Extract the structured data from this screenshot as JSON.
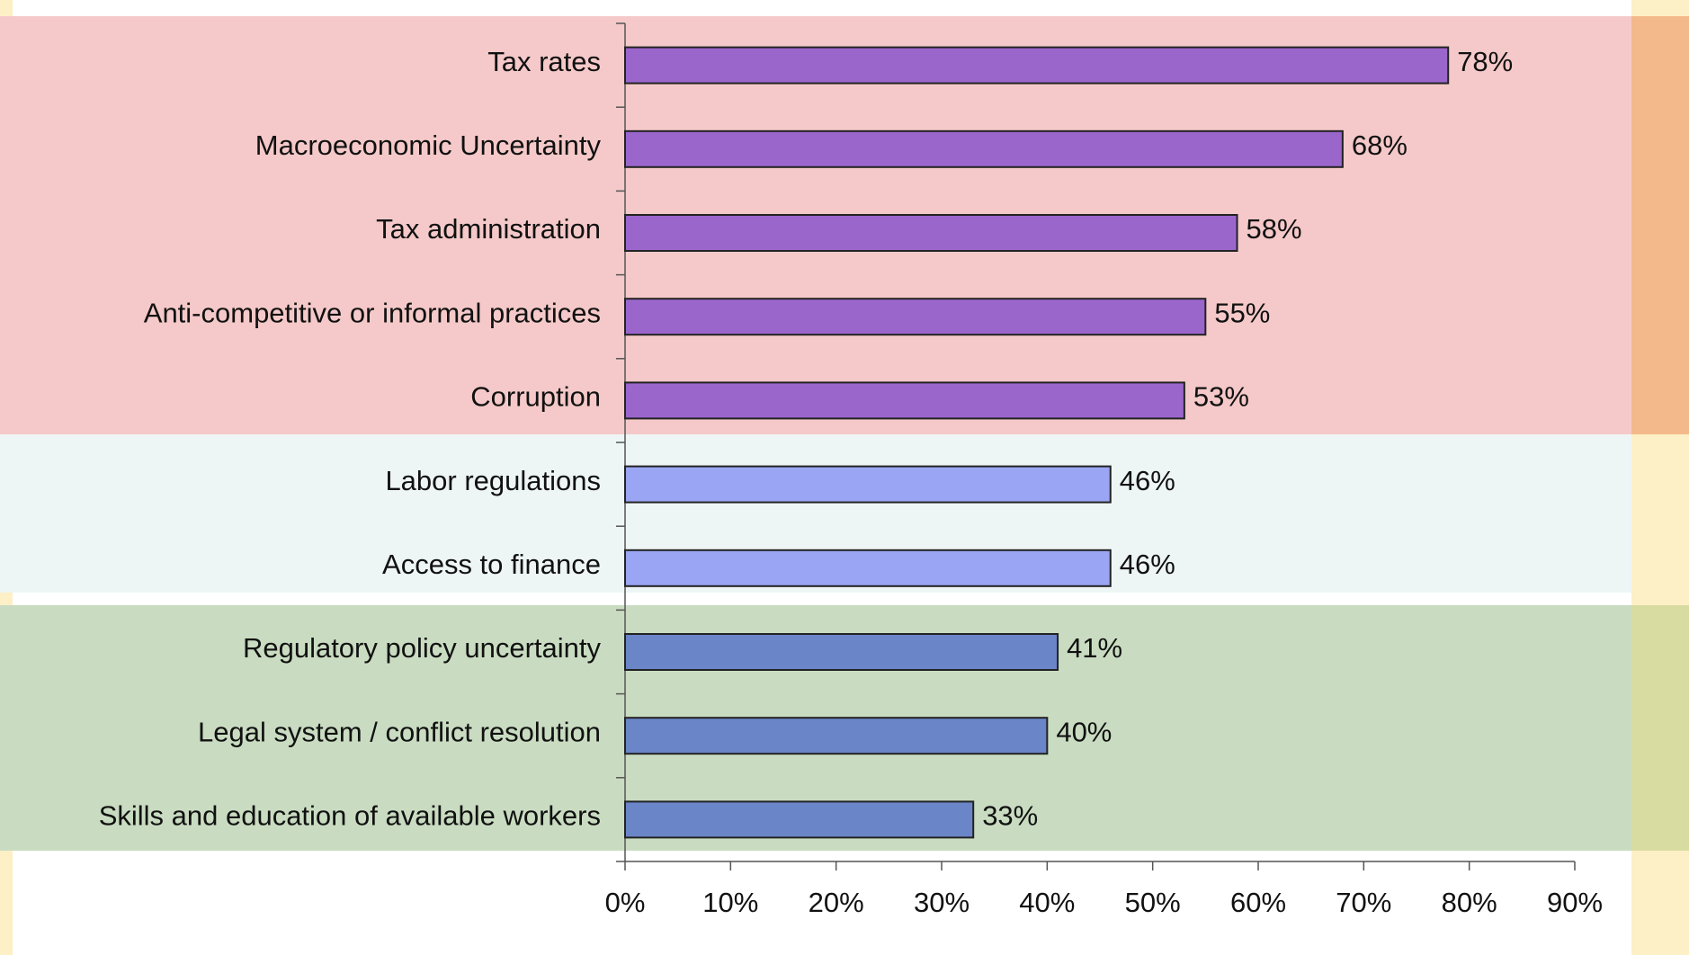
{
  "chart_data": {
    "type": "bar",
    "orientation": "horizontal",
    "categories": [
      "Tax rates",
      "Macroeconomic Uncertainty",
      "Tax administration",
      "Anti-competitive or informal practices",
      "Corruption",
      "Labor regulations",
      "Access to finance",
      "Regulatory policy uncertainty",
      "Legal system / conflict resolution",
      "Skills and education of available workers"
    ],
    "values": [
      78,
      68,
      58,
      55,
      53,
      46,
      46,
      41,
      40,
      33
    ],
    "value_labels": [
      "78%",
      "68%",
      "58%",
      "55%",
      "53%",
      "46%",
      "46%",
      "41%",
      "40%",
      "33%"
    ],
    "colors": [
      "#9b66cc",
      "#9b66cc",
      "#9b66cc",
      "#9b66cc",
      "#9b66cc",
      "#9aa6f4",
      "#9aa6f4",
      "#6a85c8",
      "#6a85c8",
      "#6a85c8"
    ],
    "xlim": [
      0,
      90
    ],
    "xticks": [
      {
        "value": 0,
        "label": "0%"
      },
      {
        "value": 10,
        "label": "10%"
      },
      {
        "value": 20,
        "label": "20%"
      },
      {
        "value": 30,
        "label": "30%"
      },
      {
        "value": 40,
        "label": "40%"
      },
      {
        "value": 50,
        "label": "50%"
      },
      {
        "value": 60,
        "label": "60%"
      },
      {
        "value": 70,
        "label": "70%"
      },
      {
        "value": 80,
        "label": "80%"
      },
      {
        "value": 90,
        "label": "90%"
      }
    ]
  }
}
